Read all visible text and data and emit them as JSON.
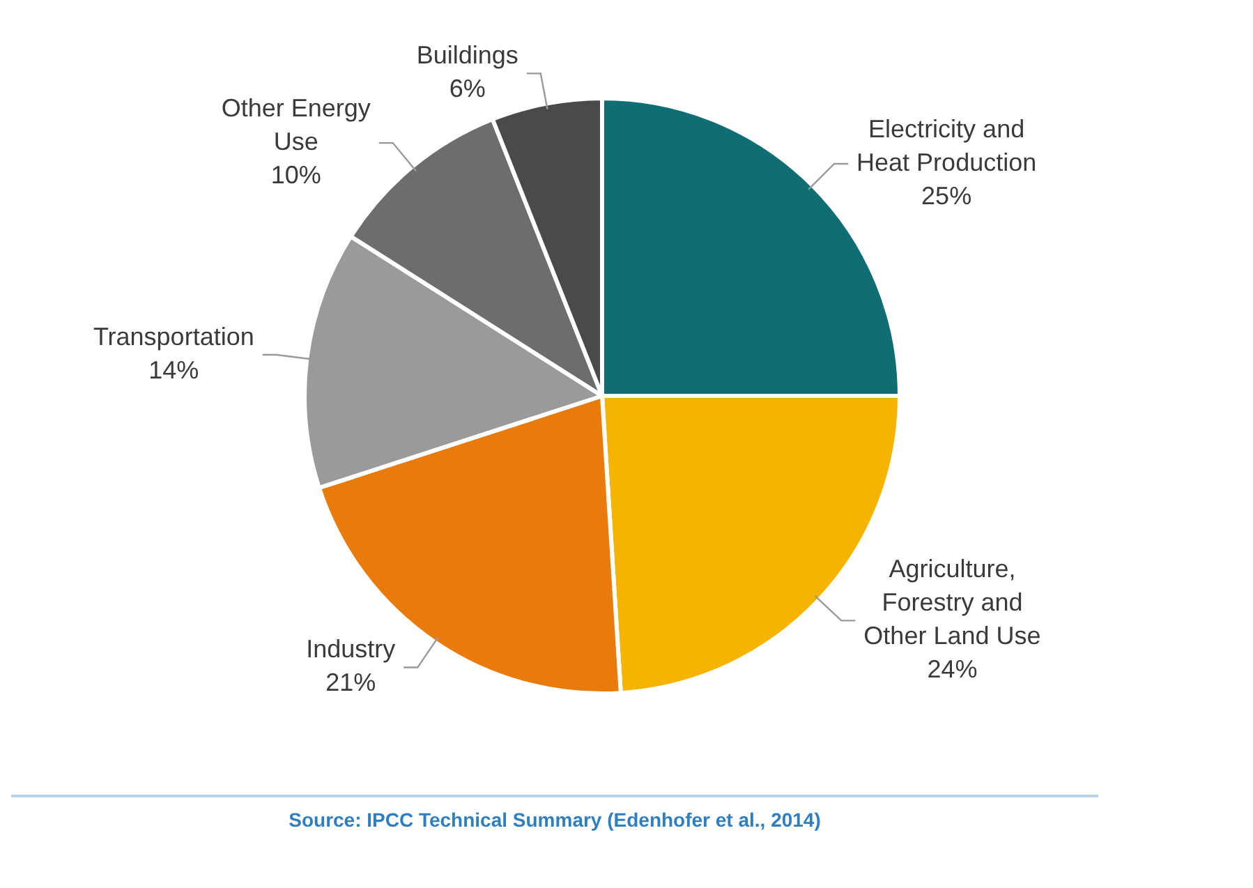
{
  "chart_data": {
    "type": "pie",
    "categories": [
      "Electricity and Heat Production",
      "Agriculture, Forestry and Other Land Use",
      "Industry",
      "Transportation",
      "Other Energy Use",
      "Buildings"
    ],
    "values": [
      25,
      24,
      21,
      14,
      10,
      6
    ],
    "value_labels": [
      "25%",
      "24%",
      "21%",
      "14%",
      "10%",
      "6%"
    ],
    "colors": [
      "#0f6e74",
      "#f6b400",
      "#e97b0c",
      "#9a9a9a",
      "#6d6d6d",
      "#4a4a4a"
    ],
    "legend": false,
    "annotations": [
      "Source: IPCC Technical Summary (Edenhofer et al., 2014)"
    ]
  }
}
